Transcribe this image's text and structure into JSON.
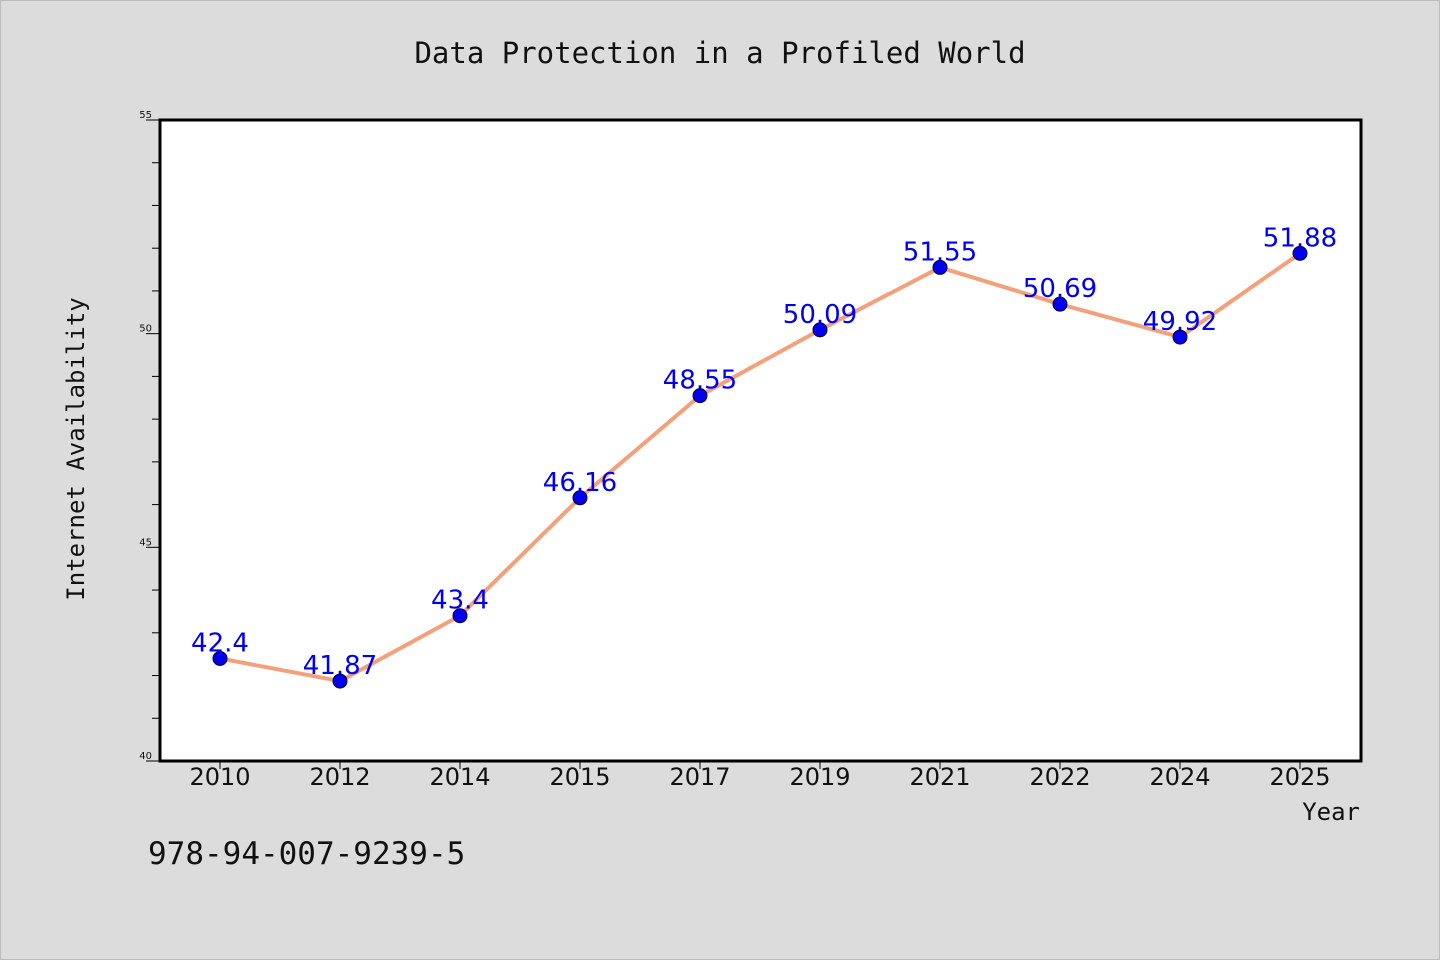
{
  "chart_data": {
    "type": "line",
    "title": "Data Protection in a Profiled World",
    "xlabel": "Year",
    "ylabel": "Internet Availability",
    "categories": [
      "2010",
      "2012",
      "2014",
      "2015",
      "2017",
      "2019",
      "2021",
      "2022",
      "2024",
      "2025"
    ],
    "series": [
      {
        "values": [
          42.4,
          41.87,
          43.4,
          46.16,
          48.55,
          50.09,
          51.55,
          50.69,
          49.92,
          51.88
        ],
        "labels": [
          "42.4",
          "41.87",
          "43.4",
          "46.16",
          "48.55",
          "50.09",
          "51.55",
          "50.69",
          "49.92",
          "51.88"
        ]
      }
    ],
    "ylim": [
      40,
      55
    ],
    "yticks": [
      "40",
      "45",
      "50",
      "55"
    ],
    "grid": false,
    "legend": "none",
    "colors": {
      "line": "#f4a07a",
      "marker": "#0000ee",
      "label": "#0000ee",
      "background": "#dcdcdc",
      "plot_background": "#ffffff"
    }
  },
  "footer": {
    "isbn": "978-94-007-9239-5"
  }
}
